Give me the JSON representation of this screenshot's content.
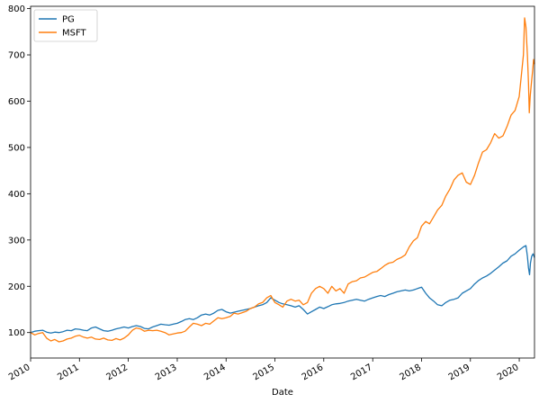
{
  "chart_data": {
    "type": "line",
    "xlabel": "Date",
    "ylabel": "",
    "xlim": [
      "2010-01-01",
      "2020-04-24"
    ],
    "ylim": [
      45,
      805
    ],
    "x_ticks": [
      "2010",
      "2011",
      "2012",
      "2013",
      "2014",
      "2015",
      "2016",
      "2017",
      "2018",
      "2019",
      "2020"
    ],
    "y_ticks": [
      100,
      200,
      300,
      400,
      500,
      600,
      700,
      800
    ],
    "grid": false,
    "legend_position": "top-left",
    "series": [
      {
        "name": "PG",
        "color": "#1f77b4",
        "points": [
          [
            "2010-01-01",
            100
          ],
          [
            "2010-02-01",
            103
          ],
          [
            "2010-03-01",
            104
          ],
          [
            "2010-04-01",
            105
          ],
          [
            "2010-05-01",
            101
          ],
          [
            "2010-06-01",
            99
          ],
          [
            "2010-07-01",
            101
          ],
          [
            "2010-08-01",
            100
          ],
          [
            "2010-09-01",
            102
          ],
          [
            "2010-10-01",
            105
          ],
          [
            "2010-11-01",
            104
          ],
          [
            "2010-12-01",
            108
          ],
          [
            "2011-01-01",
            107
          ],
          [
            "2011-02-01",
            105
          ],
          [
            "2011-03-01",
            104
          ],
          [
            "2011-04-01",
            110
          ],
          [
            "2011-05-01",
            112
          ],
          [
            "2011-06-01",
            108
          ],
          [
            "2011-07-01",
            104
          ],
          [
            "2011-08-01",
            103
          ],
          [
            "2011-09-01",
            105
          ],
          [
            "2011-10-01",
            108
          ],
          [
            "2011-11-01",
            110
          ],
          [
            "2011-12-01",
            112
          ],
          [
            "2012-01-01",
            110
          ],
          [
            "2012-02-01",
            113
          ],
          [
            "2012-03-01",
            115
          ],
          [
            "2012-04-01",
            113
          ],
          [
            "2012-05-01",
            109
          ],
          [
            "2012-06-01",
            108
          ],
          [
            "2012-07-01",
            112
          ],
          [
            "2012-08-01",
            115
          ],
          [
            "2012-09-01",
            118
          ],
          [
            "2012-10-01",
            117
          ],
          [
            "2012-11-01",
            116
          ],
          [
            "2012-12-01",
            118
          ],
          [
            "2013-01-01",
            120
          ],
          [
            "2013-02-01",
            124
          ],
          [
            "2013-03-01",
            128
          ],
          [
            "2013-04-01",
            130
          ],
          [
            "2013-05-01",
            128
          ],
          [
            "2013-06-01",
            132
          ],
          [
            "2013-07-01",
            138
          ],
          [
            "2013-08-01",
            140
          ],
          [
            "2013-09-01",
            138
          ],
          [
            "2013-10-01",
            142
          ],
          [
            "2013-11-01",
            148
          ],
          [
            "2013-12-01",
            150
          ],
          [
            "2014-01-01",
            145
          ],
          [
            "2014-02-01",
            142
          ],
          [
            "2014-03-01",
            144
          ],
          [
            "2014-04-01",
            146
          ],
          [
            "2014-05-01",
            148
          ],
          [
            "2014-06-01",
            150
          ],
          [
            "2014-07-01",
            152
          ],
          [
            "2014-08-01",
            155
          ],
          [
            "2014-09-01",
            158
          ],
          [
            "2014-10-01",
            160
          ],
          [
            "2014-11-01",
            165
          ],
          [
            "2014-12-01",
            175
          ],
          [
            "2015-01-01",
            170
          ],
          [
            "2015-02-01",
            165
          ],
          [
            "2015-03-01",
            162
          ],
          [
            "2015-04-01",
            160
          ],
          [
            "2015-05-01",
            158
          ],
          [
            "2015-06-01",
            155
          ],
          [
            "2015-07-01",
            158
          ],
          [
            "2015-08-01",
            150
          ],
          [
            "2015-09-01",
            140
          ],
          [
            "2015-10-01",
            145
          ],
          [
            "2015-11-01",
            150
          ],
          [
            "2015-12-01",
            155
          ],
          [
            "2016-01-01",
            152
          ],
          [
            "2016-02-01",
            156
          ],
          [
            "2016-03-01",
            160
          ],
          [
            "2016-04-01",
            162
          ],
          [
            "2016-05-01",
            163
          ],
          [
            "2016-06-01",
            165
          ],
          [
            "2016-07-01",
            168
          ],
          [
            "2016-08-01",
            170
          ],
          [
            "2016-09-01",
            172
          ],
          [
            "2016-10-01",
            170
          ],
          [
            "2016-11-01",
            168
          ],
          [
            "2016-12-01",
            172
          ],
          [
            "2017-01-01",
            175
          ],
          [
            "2017-02-01",
            178
          ],
          [
            "2017-03-01",
            180
          ],
          [
            "2017-04-01",
            178
          ],
          [
            "2017-05-01",
            182
          ],
          [
            "2017-06-01",
            185
          ],
          [
            "2017-07-01",
            188
          ],
          [
            "2017-08-01",
            190
          ],
          [
            "2017-09-01",
            192
          ],
          [
            "2017-10-01",
            190
          ],
          [
            "2017-11-01",
            192
          ],
          [
            "2017-12-01",
            195
          ],
          [
            "2018-01-01",
            198
          ],
          [
            "2018-02-01",
            185
          ],
          [
            "2018-03-01",
            175
          ],
          [
            "2018-04-01",
            168
          ],
          [
            "2018-05-01",
            160
          ],
          [
            "2018-06-01",
            158
          ],
          [
            "2018-07-01",
            165
          ],
          [
            "2018-08-01",
            170
          ],
          [
            "2018-09-01",
            172
          ],
          [
            "2018-10-01",
            175
          ],
          [
            "2018-11-01",
            185
          ],
          [
            "2018-12-01",
            190
          ],
          [
            "2019-01-01",
            195
          ],
          [
            "2019-02-01",
            205
          ],
          [
            "2019-03-01",
            212
          ],
          [
            "2019-04-01",
            218
          ],
          [
            "2019-05-01",
            222
          ],
          [
            "2019-06-01",
            228
          ],
          [
            "2019-07-01",
            235
          ],
          [
            "2019-08-01",
            242
          ],
          [
            "2019-09-01",
            250
          ],
          [
            "2019-10-01",
            255
          ],
          [
            "2019-11-01",
            265
          ],
          [
            "2019-12-01",
            270
          ],
          [
            "2020-01-01",
            278
          ],
          [
            "2020-02-01",
            285
          ],
          [
            "2020-02-20",
            288
          ],
          [
            "2020-03-02",
            265
          ],
          [
            "2020-03-10",
            240
          ],
          [
            "2020-03-18",
            225
          ],
          [
            "2020-03-25",
            250
          ],
          [
            "2020-04-03",
            265
          ],
          [
            "2020-04-13",
            270
          ],
          [
            "2020-04-24",
            262
          ]
        ]
      },
      {
        "name": "MSFT",
        "color": "#ff7f0e",
        "points": [
          [
            "2010-01-01",
            100
          ],
          [
            "2010-02-01",
            95
          ],
          [
            "2010-03-01",
            98
          ],
          [
            "2010-04-01",
            100
          ],
          [
            "2010-05-01",
            88
          ],
          [
            "2010-06-01",
            82
          ],
          [
            "2010-07-01",
            85
          ],
          [
            "2010-08-01",
            80
          ],
          [
            "2010-09-01",
            82
          ],
          [
            "2010-10-01",
            86
          ],
          [
            "2010-11-01",
            88
          ],
          [
            "2010-12-01",
            92
          ],
          [
            "2011-01-01",
            94
          ],
          [
            "2011-02-01",
            90
          ],
          [
            "2011-03-01",
            88
          ],
          [
            "2011-04-01",
            90
          ],
          [
            "2011-05-01",
            86
          ],
          [
            "2011-06-01",
            85
          ],
          [
            "2011-07-01",
            88
          ],
          [
            "2011-08-01",
            84
          ],
          [
            "2011-09-01",
            83
          ],
          [
            "2011-10-01",
            87
          ],
          [
            "2011-11-01",
            84
          ],
          [
            "2011-12-01",
            88
          ],
          [
            "2012-01-01",
            95
          ],
          [
            "2012-02-01",
            105
          ],
          [
            "2012-03-01",
            110
          ],
          [
            "2012-04-01",
            108
          ],
          [
            "2012-05-01",
            103
          ],
          [
            "2012-06-01",
            105
          ],
          [
            "2012-07-01",
            104
          ],
          [
            "2012-08-01",
            105
          ],
          [
            "2012-09-01",
            103
          ],
          [
            "2012-10-01",
            100
          ],
          [
            "2012-11-01",
            95
          ],
          [
            "2012-12-01",
            97
          ],
          [
            "2013-01-01",
            99
          ],
          [
            "2013-02-01",
            100
          ],
          [
            "2013-03-01",
            103
          ],
          [
            "2013-04-01",
            112
          ],
          [
            "2013-05-01",
            120
          ],
          [
            "2013-06-01",
            118
          ],
          [
            "2013-07-01",
            115
          ],
          [
            "2013-08-01",
            120
          ],
          [
            "2013-09-01",
            118
          ],
          [
            "2013-10-01",
            125
          ],
          [
            "2013-11-01",
            132
          ],
          [
            "2013-12-01",
            130
          ],
          [
            "2014-01-01",
            132
          ],
          [
            "2014-02-01",
            135
          ],
          [
            "2014-03-01",
            142
          ],
          [
            "2014-04-01",
            140
          ],
          [
            "2014-05-01",
            143
          ],
          [
            "2014-06-01",
            146
          ],
          [
            "2014-07-01",
            152
          ],
          [
            "2014-08-01",
            155
          ],
          [
            "2014-09-01",
            162
          ],
          [
            "2014-10-01",
            165
          ],
          [
            "2014-11-01",
            175
          ],
          [
            "2014-12-01",
            180
          ],
          [
            "2015-01-01",
            165
          ],
          [
            "2015-02-01",
            160
          ],
          [
            "2015-03-01",
            155
          ],
          [
            "2015-04-01",
            168
          ],
          [
            "2015-05-01",
            172
          ],
          [
            "2015-06-01",
            168
          ],
          [
            "2015-07-01",
            170
          ],
          [
            "2015-08-01",
            160
          ],
          [
            "2015-09-01",
            165
          ],
          [
            "2015-10-01",
            185
          ],
          [
            "2015-11-01",
            195
          ],
          [
            "2015-12-01",
            200
          ],
          [
            "2016-01-01",
            195
          ],
          [
            "2016-02-01",
            185
          ],
          [
            "2016-03-01",
            200
          ],
          [
            "2016-04-01",
            190
          ],
          [
            "2016-05-01",
            195
          ],
          [
            "2016-06-01",
            185
          ],
          [
            "2016-07-01",
            205
          ],
          [
            "2016-08-01",
            210
          ],
          [
            "2016-09-01",
            212
          ],
          [
            "2016-10-01",
            218
          ],
          [
            "2016-11-01",
            220
          ],
          [
            "2016-12-01",
            225
          ],
          [
            "2017-01-01",
            230
          ],
          [
            "2017-02-01",
            232
          ],
          [
            "2017-03-01",
            238
          ],
          [
            "2017-04-01",
            245
          ],
          [
            "2017-05-01",
            250
          ],
          [
            "2017-06-01",
            252
          ],
          [
            "2017-07-01",
            258
          ],
          [
            "2017-08-01",
            262
          ],
          [
            "2017-09-01",
            268
          ],
          [
            "2017-10-01",
            285
          ],
          [
            "2017-11-01",
            298
          ],
          [
            "2017-12-01",
            305
          ],
          [
            "2018-01-01",
            330
          ],
          [
            "2018-02-01",
            340
          ],
          [
            "2018-03-01",
            335
          ],
          [
            "2018-04-01",
            350
          ],
          [
            "2018-05-01",
            365
          ],
          [
            "2018-06-01",
            375
          ],
          [
            "2018-07-01",
            395
          ],
          [
            "2018-08-01",
            410
          ],
          [
            "2018-09-01",
            430
          ],
          [
            "2018-10-01",
            440
          ],
          [
            "2018-11-01",
            445
          ],
          [
            "2018-12-01",
            425
          ],
          [
            "2019-01-01",
            420
          ],
          [
            "2019-02-01",
            440
          ],
          [
            "2019-03-01",
            465
          ],
          [
            "2019-04-01",
            490
          ],
          [
            "2019-05-01",
            495
          ],
          [
            "2019-06-01",
            510
          ],
          [
            "2019-07-01",
            530
          ],
          [
            "2019-08-01",
            520
          ],
          [
            "2019-09-01",
            525
          ],
          [
            "2019-10-01",
            545
          ],
          [
            "2019-11-01",
            570
          ],
          [
            "2019-12-01",
            580
          ],
          [
            "2020-01-01",
            610
          ],
          [
            "2020-02-01",
            700
          ],
          [
            "2020-02-10",
            780
          ],
          [
            "2020-02-20",
            760
          ],
          [
            "2020-03-02",
            700
          ],
          [
            "2020-03-10",
            640
          ],
          [
            "2020-03-16",
            575
          ],
          [
            "2020-03-23",
            610
          ],
          [
            "2020-04-01",
            640
          ],
          [
            "2020-04-10",
            665
          ],
          [
            "2020-04-17",
            690
          ],
          [
            "2020-04-24",
            680
          ]
        ]
      }
    ]
  }
}
